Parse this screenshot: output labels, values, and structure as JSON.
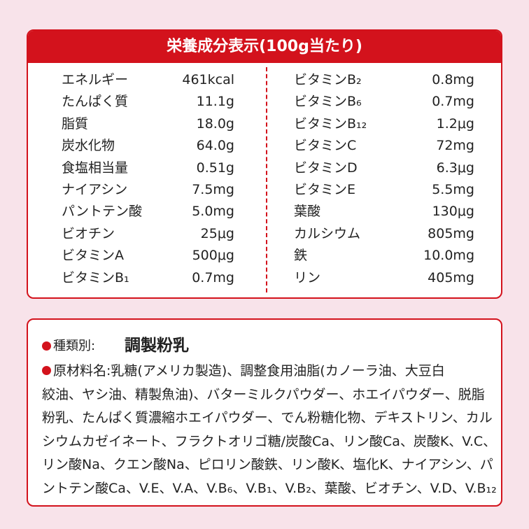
{
  "header": {
    "title": "栄養成分表示(100g当たり)"
  },
  "nutrition": {
    "left": [
      [
        "エネルギー",
        "461kcal"
      ],
      [
        "たんぱく質",
        "11.1g"
      ],
      [
        "脂質",
        "18.0g"
      ],
      [
        "炭水化物",
        "64.0g"
      ],
      [
        "食塩相当量",
        "0.51g"
      ],
      [
        "ナイアシン",
        "7.5mg"
      ],
      [
        "パントテン酸",
        "5.0mg"
      ],
      [
        "ビオチン",
        "25μg"
      ],
      [
        "ビタミンA",
        "500μg"
      ],
      [
        "ビタミンB₁",
        "0.7mg"
      ]
    ],
    "right": [
      [
        "ビタミンB₂",
        "0.8mg"
      ],
      [
        "ビタミンB₆",
        "0.7mg"
      ],
      [
        "ビタミンB₁₂",
        "1.2μg"
      ],
      [
        "ビタミンC",
        "72mg"
      ],
      [
        "ビタミンD",
        "6.3μg"
      ],
      [
        "ビタミンE",
        "5.5mg"
      ],
      [
        "葉酸",
        "130μg"
      ],
      [
        "カルシウム",
        "805mg"
      ],
      [
        "鉄",
        "10.0mg"
      ],
      [
        "リン",
        "405mg"
      ]
    ]
  },
  "details": {
    "type_label": "種類別:",
    "type_value": "調製粉乳",
    "ingredient_lines": [
      "原材料名:乳糖(アメリカ製造)、調整食用油脂(カノーラ油、大豆白",
      "絞油、ヤシ油、精製魚油)、バターミルクパウダー、ホエイパウダー、脱脂",
      "粉乳、たんぱく質濃縮ホエイパウダー、でん粉糖化物、デキストリン、カル",
      "シウムカゼイネート、フラクトオリゴ糖/炭酸Ca、リン酸Ca、炭酸K、V.C、",
      "リン酸Na、クエン酸Na、ピロリン酸鉄、リン酸K、塩化K、ナイアシン、パ",
      "ントテン酸Ca、V.E、V.A、V.B₆、V.B₁、V.B₂、葉酸、ビオチン、V.D、V.B₁₂"
    ]
  }
}
